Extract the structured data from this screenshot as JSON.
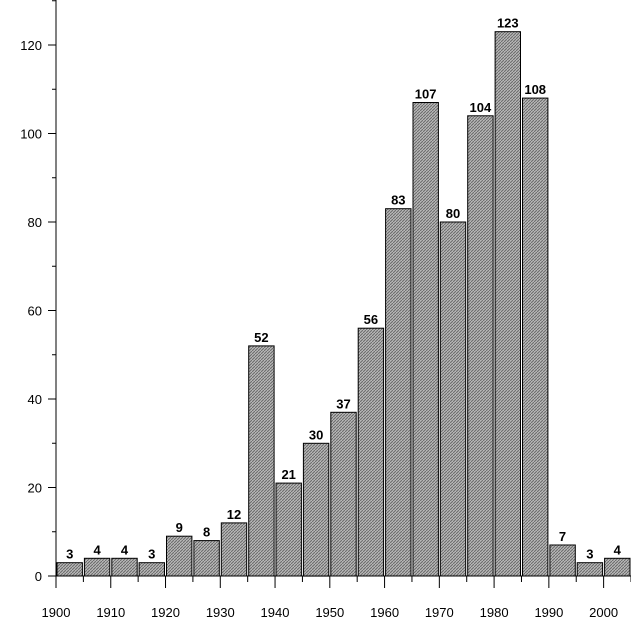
{
  "chart_data": {
    "type": "bar",
    "title": "",
    "xlabel": "",
    "ylabel": "",
    "categories": [
      "1900",
      "1905",
      "1910",
      "1915",
      "1920",
      "1925",
      "1930",
      "1935",
      "1940",
      "1945",
      "1950",
      "1955",
      "1960",
      "1965",
      "1970",
      "1975",
      "1980",
      "1985",
      "1990",
      "1995",
      "2000"
    ],
    "values": [
      3,
      4,
      4,
      3,
      9,
      8,
      12,
      52,
      21,
      30,
      37,
      56,
      83,
      107,
      80,
      104,
      123,
      108,
      7,
      3,
      4
    ],
    "x_ticks": [
      "1900",
      "1910",
      "1920",
      "1930",
      "1940",
      "1950",
      "1960",
      "1970",
      "1980",
      "1990",
      "2000"
    ],
    "y_ticks": [
      "0",
      "20",
      "40",
      "60",
      "80",
      "100",
      "120"
    ],
    "xlim": [
      1900,
      2005
    ],
    "ylim": [
      0,
      130
    ],
    "grid": false,
    "bar_color": "#8c8c8c",
    "bar_edge_color": "#000000"
  }
}
